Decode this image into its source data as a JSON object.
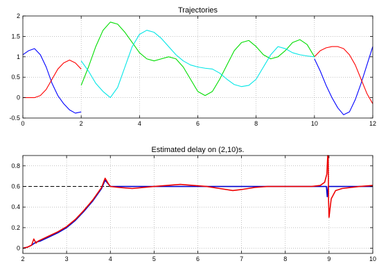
{
  "chart_data": [
    {
      "type": "line",
      "title": "Trajectories",
      "xlim": [
        0,
        12
      ],
      "ylim": [
        -0.5,
        2
      ],
      "xticks": [
        0,
        2,
        4,
        6,
        8,
        10,
        12
      ],
      "yticks": [
        -0.5,
        0,
        0.5,
        1,
        1.5,
        2
      ],
      "grid": true,
      "series": [
        {
          "color": "#0000ff",
          "segments": [
            {
              "x": [
                0,
                0.2,
                0.4,
                0.6,
                0.8,
                1.0,
                1.2,
                1.4,
                1.6,
                1.8,
                2.0
              ],
              "y": [
                1.05,
                1.15,
                1.2,
                1.05,
                0.75,
                0.35,
                0.05,
                -0.15,
                -0.3,
                -0.38,
                -0.35
              ]
            },
            {
              "x": [
                10,
                10.2,
                10.4,
                10.6,
                10.8,
                11.0,
                11.2,
                11.4,
                11.6,
                11.8,
                12.0
              ],
              "y": [
                0.95,
                0.65,
                0.3,
                0.0,
                -0.25,
                -0.42,
                -0.35,
                -0.05,
                0.35,
                0.8,
                1.25
              ]
            }
          ]
        },
        {
          "color": "#ff0000",
          "segments": [
            {
              "x": [
                0,
                0.2,
                0.4,
                0.6,
                0.8,
                1.0,
                1.2,
                1.4,
                1.6,
                1.8,
                2.0
              ],
              "y": [
                0.0,
                0.0,
                0.0,
                0.05,
                0.2,
                0.45,
                0.7,
                0.85,
                0.92,
                0.85,
                0.7
              ]
            },
            {
              "x": [
                10,
                10.2,
                10.4,
                10.6,
                10.8,
                11.0,
                11.2,
                11.4,
                11.6,
                11.8,
                12.0
              ],
              "y": [
                1.0,
                1.15,
                1.22,
                1.25,
                1.25,
                1.2,
                1.05,
                0.8,
                0.45,
                0.1,
                -0.15
              ]
            }
          ]
        },
        {
          "color": "#00dd00",
          "segments": [
            {
              "x": [
                2.0,
                2.25,
                2.5,
                2.75,
                3.0,
                3.25,
                3.5,
                3.75,
                4.0,
                4.25,
                4.5,
                4.75,
                5.0,
                5.25,
                5.5,
                5.75,
                6.0,
                6.25,
                6.5,
                6.75,
                7.0,
                7.25,
                7.5,
                7.75,
                8.0,
                8.25,
                8.5,
                8.75,
                9.0,
                9.25,
                9.5,
                9.75,
                10.0
              ],
              "y": [
                0.3,
                0.75,
                1.25,
                1.65,
                1.85,
                1.8,
                1.6,
                1.35,
                1.1,
                0.95,
                0.9,
                0.95,
                1.0,
                0.95,
                0.75,
                0.45,
                0.15,
                0.05,
                0.15,
                0.45,
                0.8,
                1.15,
                1.35,
                1.4,
                1.25,
                1.05,
                0.95,
                1.0,
                1.15,
                1.35,
                1.42,
                1.3,
                1.0
              ]
            }
          ]
        },
        {
          "color": "#00e6e6",
          "segments": [
            {
              "x": [
                2.0,
                2.25,
                2.5,
                2.75,
                3.0,
                3.25,
                3.5,
                3.75,
                4.0,
                4.25,
                4.5,
                4.75,
                5.0,
                5.25,
                5.5,
                5.75,
                6.0,
                6.25,
                6.5,
                6.75,
                7.0,
                7.25,
                7.5,
                7.75,
                8.0,
                8.25,
                8.5,
                8.75,
                9.0,
                9.25,
                9.5,
                9.75,
                10.0
              ],
              "y": [
                0.9,
                0.65,
                0.35,
                0.15,
                0.0,
                0.25,
                0.75,
                1.25,
                1.55,
                1.65,
                1.6,
                1.45,
                1.25,
                1.05,
                0.9,
                0.8,
                0.75,
                0.72,
                0.7,
                0.6,
                0.45,
                0.32,
                0.27,
                0.3,
                0.45,
                0.75,
                1.05,
                1.25,
                1.2,
                1.1,
                1.05,
                1.02,
                1.0
              ]
            }
          ]
        }
      ]
    },
    {
      "type": "line",
      "title": "Estimated delay on (2,10)s.",
      "xlim": [
        2,
        10
      ],
      "ylim": [
        -0.05,
        0.9
      ],
      "xticks": [
        2,
        3,
        4,
        5,
        6,
        7,
        8,
        9,
        10
      ],
      "yticks": [
        0,
        0.2,
        0.4,
        0.6,
        0.8
      ],
      "grid": true,
      "reference_line": {
        "y": 0.6,
        "style": "dashed",
        "color": "#000000",
        "x": [
          2,
          10
        ]
      },
      "series": [
        {
          "color": "#0000cc",
          "x": [
            2.0,
            2.1,
            2.2,
            2.3,
            2.4,
            2.6,
            2.8,
            3.0,
            3.2,
            3.4,
            3.6,
            3.8,
            3.88,
            4.0,
            4.2,
            4.5,
            5.0,
            5.5,
            6.0,
            6.5,
            7.0,
            7.5,
            8.0,
            8.5,
            8.8,
            8.94,
            8.96,
            8.98,
            9.0,
            9.05,
            9.1,
            9.3,
            9.6,
            10.0
          ],
          "y": [
            0.0,
            0.01,
            0.03,
            0.06,
            0.07,
            0.11,
            0.15,
            0.2,
            0.27,
            0.36,
            0.46,
            0.58,
            0.66,
            0.6,
            0.6,
            0.6,
            0.6,
            0.6,
            0.6,
            0.6,
            0.6,
            0.6,
            0.6,
            0.6,
            0.6,
            0.6,
            0.5,
            0.6,
            0.6,
            0.6,
            0.6,
            0.6,
            0.6,
            0.6
          ]
        },
        {
          "color": "#ee0000",
          "x": [
            2.0,
            2.1,
            2.2,
            2.25,
            2.3,
            2.35,
            2.4,
            2.6,
            2.8,
            3.0,
            3.2,
            3.4,
            3.6,
            3.8,
            3.88,
            3.95,
            4.0,
            4.2,
            4.5,
            5.0,
            5.3,
            5.6,
            5.9,
            6.2,
            6.5,
            6.8,
            7.0,
            7.3,
            7.6,
            8.0,
            8.3,
            8.6,
            8.8,
            8.9,
            8.95,
            8.97,
            8.98,
            8.99,
            9.0,
            9.05,
            9.15,
            9.3,
            9.5,
            9.7,
            10.0
          ],
          "y": [
            0.0,
            0.01,
            0.03,
            0.09,
            0.05,
            0.07,
            0.08,
            0.12,
            0.16,
            0.21,
            0.28,
            0.37,
            0.47,
            0.59,
            0.68,
            0.63,
            0.6,
            0.59,
            0.58,
            0.6,
            0.61,
            0.62,
            0.61,
            0.6,
            0.58,
            0.56,
            0.57,
            0.59,
            0.6,
            0.6,
            0.6,
            0.6,
            0.61,
            0.64,
            0.72,
            0.9,
            0.9,
            0.45,
            0.3,
            0.48,
            0.56,
            0.58,
            0.59,
            0.6,
            0.61
          ]
        }
      ]
    }
  ]
}
